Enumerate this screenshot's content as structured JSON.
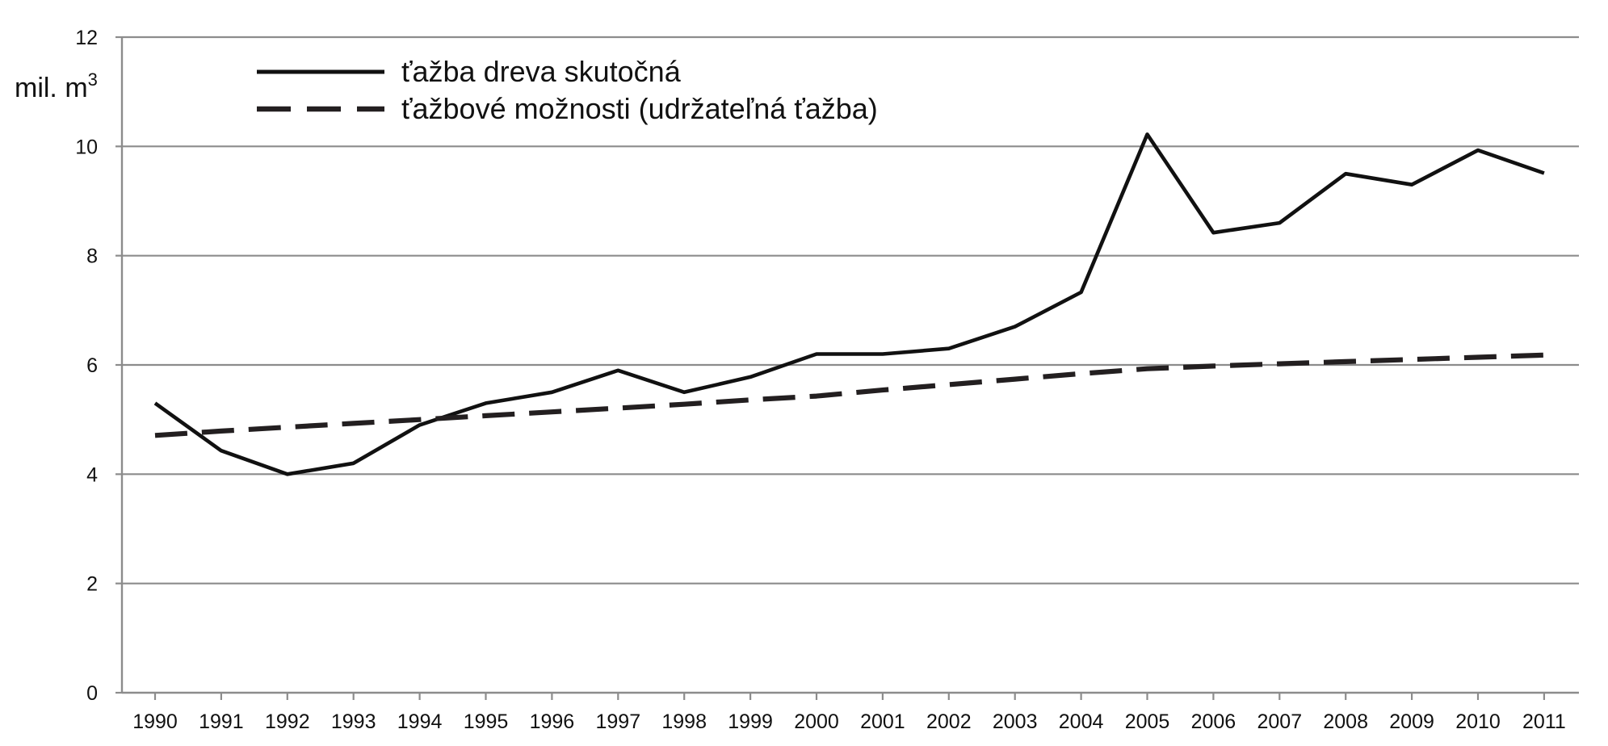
{
  "chart_data": {
    "type": "line",
    "ylabel": "mil. m",
    "ylabel_superscript": "3",
    "xlabel": "",
    "ylim": [
      0,
      12
    ],
    "y_ticks": [
      0,
      2,
      4,
      6,
      8,
      10,
      12
    ],
    "grid": true,
    "legend_position": "top-left",
    "categories": [
      "1990",
      "1991",
      "1992",
      "1993",
      "1994",
      "1995",
      "1996",
      "1997",
      "1998",
      "1999",
      "2000",
      "2001",
      "2002",
      "2003",
      "2004",
      "2005",
      "2006",
      "2007",
      "2008",
      "2009",
      "2010",
      "2011"
    ],
    "series": [
      {
        "name": "ťažba dreva skutočná",
        "style": "solid",
        "color": "#111111",
        "values": [
          5.3,
          4.43,
          4.0,
          4.2,
          4.9,
          5.3,
          5.5,
          5.9,
          5.5,
          5.78,
          6.2,
          6.2,
          6.3,
          6.7,
          7.33,
          10.22,
          8.42,
          8.6,
          9.5,
          9.3,
          9.93,
          9.51
        ]
      },
      {
        "name": "ťažbové možnosti (udržateľná ťažba)",
        "style": "dashed",
        "color": "#231f20",
        "values": [
          4.71,
          4.79,
          4.86,
          4.93,
          5.0,
          5.07,
          5.14,
          5.21,
          5.28,
          5.36,
          5.43,
          5.54,
          5.64,
          5.74,
          5.84,
          5.93,
          5.98,
          6.02,
          6.06,
          6.1,
          6.14,
          6.18
        ]
      }
    ]
  }
}
